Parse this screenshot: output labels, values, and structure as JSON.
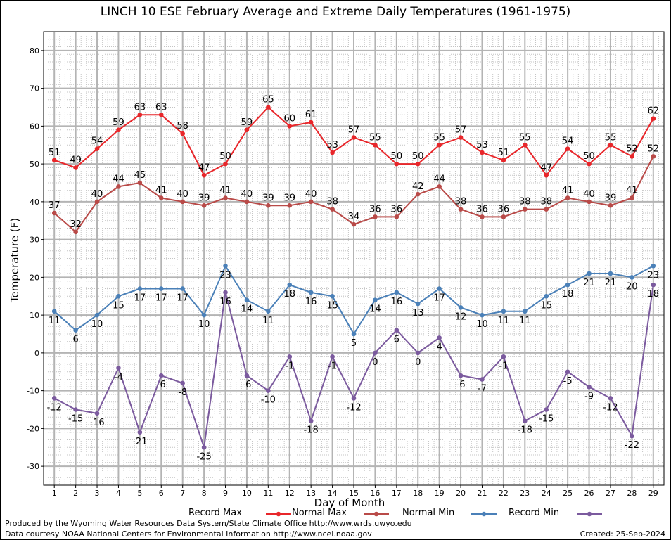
{
  "title": "LINCH 10 ESE February Average and Extreme Daily Temperatures (1961-1975)",
  "footer": {
    "produced_by": "Produced by the Wyoming Water Resources Data System/State Climate Office http://www.wrds.uwyo.edu",
    "courtesy": "Data courtesy NOAA National Centers for Environmental Information http://www.ncei.noaa.gov",
    "created": "Created:  25-Sep-2024"
  },
  "chart_data": {
    "type": "line",
    "title": "LINCH 10 ESE February Average and Extreme Daily Temperatures (1961-1975)",
    "xlabel": "Day of Month",
    "ylabel": "Temperature (F)",
    "x": [
      1,
      2,
      3,
      4,
      5,
      6,
      7,
      8,
      9,
      10,
      11,
      12,
      13,
      14,
      15,
      16,
      17,
      18,
      19,
      20,
      21,
      22,
      23,
      24,
      25,
      26,
      27,
      28,
      29
    ],
    "xlim": [
      0.5,
      29.5
    ],
    "ylim": [
      -35,
      85
    ],
    "yticks": [
      -30,
      -20,
      -10,
      0,
      10,
      20,
      30,
      40,
      50,
      60,
      70,
      80
    ],
    "grid": true,
    "legend_position": "bottom",
    "series": [
      {
        "name": "Record Max",
        "color": "#e8262a",
        "label_side": "above",
        "values": [
          51,
          49,
          54,
          59,
          63,
          63,
          58,
          47,
          50,
          59,
          65,
          60,
          61,
          53,
          57,
          55,
          50,
          50,
          55,
          57,
          53,
          51,
          55,
          47,
          54,
          50,
          55,
          52,
          62
        ]
      },
      {
        "name": "Normal Max",
        "color": "#b94a48",
        "label_side": "above",
        "values": [
          37,
          32,
          40,
          44,
          45,
          41,
          40,
          39,
          41,
          40,
          39,
          39,
          40,
          38,
          34,
          36,
          36,
          42,
          44,
          38,
          36,
          36,
          38,
          38,
          41,
          40,
          39,
          41,
          52
        ]
      },
      {
        "name": "Normal Min",
        "color": "#4a80b8",
        "label_side": "below",
        "values": [
          11,
          6,
          10,
          15,
          17,
          17,
          17,
          10,
          23,
          14,
          11,
          18,
          16,
          15,
          5,
          14,
          16,
          13,
          17,
          12,
          10,
          11,
          11,
          15,
          18,
          21,
          21,
          20,
          23
        ]
      },
      {
        "name": "Record Min",
        "color": "#7b5a9e",
        "label_side": "below",
        "values": [
          -12,
          -15,
          -16,
          -4,
          -21,
          -6,
          -8,
          -25,
          16,
          -6,
          -10,
          -1,
          -18,
          -1,
          -12,
          0,
          6,
          0,
          4,
          -6,
          -7,
          -1,
          -18,
          -15,
          -5,
          -9,
          -12,
          -22,
          18
        ]
      }
    ]
  }
}
